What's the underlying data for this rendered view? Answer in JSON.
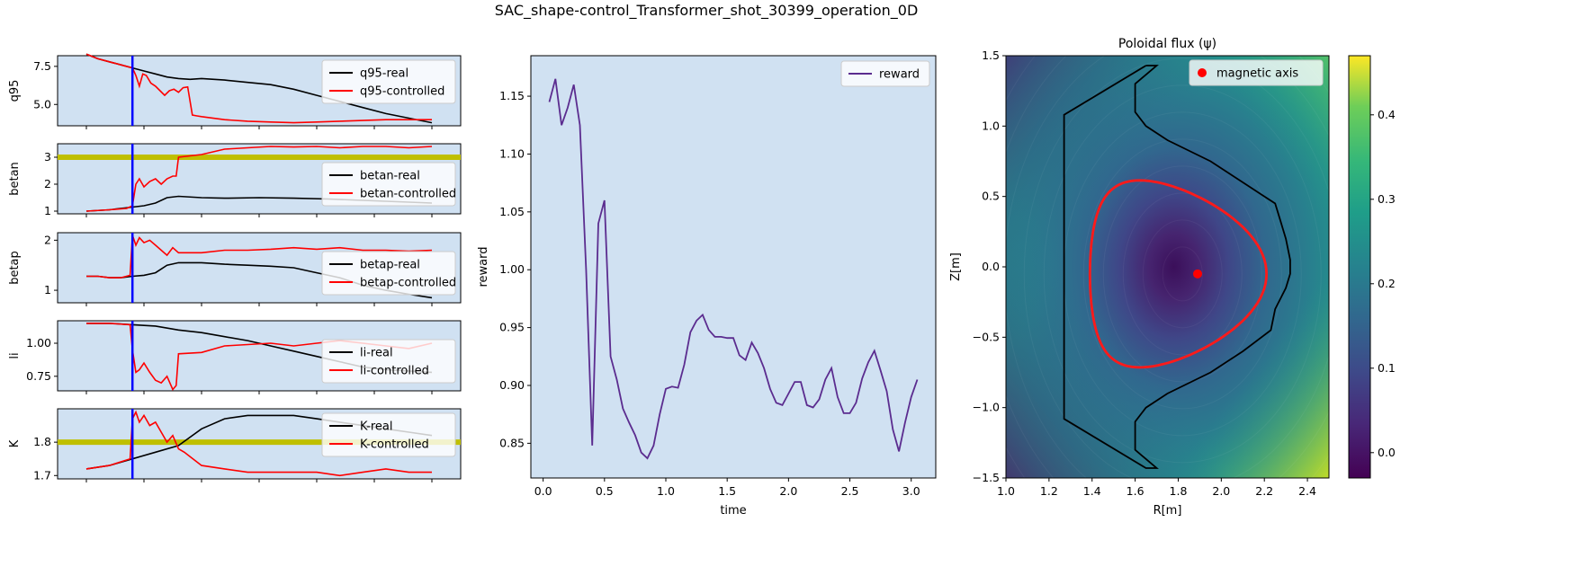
{
  "figure": {
    "title": "SAC_shape-control_Transformer_shot_30399_operation_0D"
  },
  "colors": {
    "panel_bg": "#d0e1f2",
    "real": "#000000",
    "controlled": "#ff0000",
    "marker": "#0000ff",
    "target": "#bfbf00",
    "reward": "#5b2c8f",
    "contour": "#ff1a1a"
  },
  "chart_data": [
    {
      "type": "line",
      "name": "q95",
      "ylabel": "q95",
      "ylim": [
        3.6,
        8.2
      ],
      "yticks": [
        5.0,
        7.5
      ],
      "ytick_labels": [
        "5.0",
        "7.5"
      ],
      "xlim": [
        -0.25,
        3.25
      ],
      "marker_x": 0.4,
      "target": null,
      "series": [
        {
          "name": "q95-real",
          "x": [
            0,
            0.1,
            0.2,
            0.3,
            0.4,
            0.5,
            0.6,
            0.7,
            0.8,
            0.9,
            1.0,
            1.2,
            1.4,
            1.6,
            1.8,
            2.0,
            2.2,
            2.4,
            2.6,
            2.8,
            3.0
          ],
          "y": [
            8.3,
            8.0,
            7.8,
            7.6,
            7.4,
            7.2,
            7.0,
            6.8,
            6.7,
            6.65,
            6.7,
            6.6,
            6.45,
            6.3,
            6.0,
            5.6,
            5.2,
            4.8,
            4.4,
            4.1,
            3.8
          ]
        },
        {
          "name": "q95-controlled",
          "x": [
            0,
            0.1,
            0.2,
            0.3,
            0.4,
            0.43,
            0.46,
            0.49,
            0.52,
            0.56,
            0.6,
            0.64,
            0.68,
            0.72,
            0.76,
            0.8,
            0.84,
            0.88,
            0.92,
            0.96,
            1.0,
            1.2,
            1.4,
            1.6,
            1.8,
            2.0,
            2.2,
            2.4,
            2.6,
            2.8,
            3.0
          ],
          "y": [
            8.3,
            8.0,
            7.8,
            7.6,
            7.4,
            6.9,
            6.2,
            7.0,
            6.9,
            6.4,
            6.2,
            5.9,
            5.6,
            5.9,
            6.0,
            5.8,
            6.1,
            6.15,
            4.3,
            4.25,
            4.2,
            4.0,
            3.9,
            3.85,
            3.8,
            3.85,
            3.9,
            3.95,
            4.0,
            4.0,
            4.0
          ]
        }
      ],
      "legend_position": "top-right"
    },
    {
      "type": "line",
      "name": "betan",
      "ylabel": "betan",
      "ylim": [
        0.9,
        3.5
      ],
      "yticks": [
        1,
        2,
        3
      ],
      "ytick_labels": [
        "1",
        "2",
        "3"
      ],
      "xlim": [
        -0.25,
        3.25
      ],
      "marker_x": 0.4,
      "target": 3.0,
      "series": [
        {
          "name": "betan-real",
          "x": [
            0,
            0.2,
            0.4,
            0.5,
            0.6,
            0.7,
            0.8,
            1.0,
            1.2,
            1.5,
            1.8,
            2.1,
            2.4,
            2.7,
            3.0
          ],
          "y": [
            1.0,
            1.05,
            1.15,
            1.2,
            1.3,
            1.5,
            1.55,
            1.5,
            1.48,
            1.5,
            1.48,
            1.45,
            1.4,
            1.35,
            1.3
          ]
        },
        {
          "name": "betan-controlled",
          "x": [
            0,
            0.2,
            0.35,
            0.4,
            0.43,
            0.46,
            0.5,
            0.55,
            0.6,
            0.65,
            0.7,
            0.75,
            0.78,
            0.8,
            1.0,
            1.2,
            1.4,
            1.6,
            1.8,
            2.0,
            2.2,
            2.4,
            2.6,
            2.8,
            3.0
          ],
          "y": [
            1.0,
            1.05,
            1.1,
            1.2,
            2.0,
            2.2,
            1.9,
            2.1,
            2.2,
            2.0,
            2.2,
            2.3,
            2.3,
            3.0,
            3.1,
            3.3,
            3.35,
            3.4,
            3.38,
            3.4,
            3.35,
            3.4,
            3.4,
            3.35,
            3.4
          ]
        }
      ],
      "legend_position": "center-right"
    },
    {
      "type": "line",
      "name": "betap",
      "ylabel": "betap",
      "ylim": [
        0.75,
        2.15
      ],
      "yticks": [
        1,
        2
      ],
      "ytick_labels": [
        "1",
        "2"
      ],
      "xlim": [
        -0.25,
        3.25
      ],
      "marker_x": 0.4,
      "target": null,
      "series": [
        {
          "name": "betap-real",
          "x": [
            0,
            0.1,
            0.2,
            0.3,
            0.4,
            0.5,
            0.6,
            0.7,
            0.8,
            0.9,
            1.0,
            1.2,
            1.4,
            1.6,
            1.8,
            2.0,
            2.2,
            2.4,
            2.6,
            2.8,
            3.0
          ],
          "y": [
            1.28,
            1.28,
            1.25,
            1.25,
            1.28,
            1.3,
            1.35,
            1.5,
            1.55,
            1.55,
            1.55,
            1.52,
            1.5,
            1.48,
            1.45,
            1.35,
            1.25,
            1.1,
            1.0,
            0.92,
            0.85
          ]
        },
        {
          "name": "betap-controlled",
          "x": [
            0,
            0.1,
            0.2,
            0.3,
            0.38,
            0.4,
            0.43,
            0.46,
            0.5,
            0.55,
            0.6,
            0.65,
            0.7,
            0.75,
            0.8,
            1.0,
            1.2,
            1.4,
            1.6,
            1.8,
            2.0,
            2.2,
            2.4,
            2.6,
            2.8,
            3.0
          ],
          "y": [
            1.28,
            1.28,
            1.25,
            1.25,
            1.3,
            2.1,
            1.9,
            2.05,
            1.95,
            2.0,
            1.9,
            1.8,
            1.7,
            1.85,
            1.75,
            1.75,
            1.8,
            1.8,
            1.82,
            1.85,
            1.82,
            1.85,
            1.8,
            1.8,
            1.78,
            1.8
          ]
        }
      ],
      "legend_position": "center-right"
    },
    {
      "type": "line",
      "name": "li",
      "ylabel": "li",
      "ylim": [
        0.64,
        1.17
      ],
      "yticks": [
        0.75,
        1.0
      ],
      "ytick_labels": [
        "0.75",
        "1.00"
      ],
      "xlim": [
        -0.25,
        3.25
      ],
      "marker_x": 0.4,
      "target": null,
      "series": [
        {
          "name": "li-real",
          "x": [
            0,
            0.2,
            0.4,
            0.6,
            0.8,
            1.0,
            1.2,
            1.4,
            1.6,
            1.8,
            2.0,
            2.2,
            2.4,
            2.6,
            2.8,
            3.0
          ],
          "y": [
            1.15,
            1.15,
            1.14,
            1.13,
            1.1,
            1.08,
            1.05,
            1.02,
            0.98,
            0.94,
            0.9,
            0.86,
            0.82,
            0.8,
            0.79,
            0.78
          ]
        },
        {
          "name": "li-controlled",
          "x": [
            0,
            0.2,
            0.38,
            0.4,
            0.43,
            0.46,
            0.5,
            0.55,
            0.6,
            0.65,
            0.7,
            0.75,
            0.78,
            0.8,
            1.0,
            1.2,
            1.4,
            1.6,
            1.8,
            2.0,
            2.2,
            2.4,
            2.6,
            2.8,
            3.0
          ],
          "y": [
            1.15,
            1.15,
            1.14,
            0.95,
            0.78,
            0.8,
            0.85,
            0.78,
            0.72,
            0.7,
            0.75,
            0.65,
            0.68,
            0.92,
            0.93,
            0.98,
            0.99,
            1.0,
            0.98,
            1.0,
            1.02,
            1.0,
            0.98,
            0.96,
            1.0
          ]
        }
      ],
      "legend_position": "center-right"
    },
    {
      "type": "line",
      "name": "K",
      "ylabel": "K",
      "ylim": [
        1.69,
        1.9
      ],
      "yticks": [
        1.7,
        1.8
      ],
      "ytick_labels": [
        "1.7",
        "1.8"
      ],
      "xlim": [
        -0.25,
        3.25
      ],
      "marker_x": 0.4,
      "target": 1.8,
      "series": [
        {
          "name": "K-real",
          "x": [
            0,
            0.2,
            0.4,
            0.6,
            0.8,
            1.0,
            1.2,
            1.4,
            1.6,
            1.8,
            2.0,
            2.2,
            2.4,
            2.6,
            2.8,
            3.0
          ],
          "y": [
            1.72,
            1.73,
            1.75,
            1.77,
            1.79,
            1.84,
            1.87,
            1.88,
            1.88,
            1.88,
            1.87,
            1.86,
            1.85,
            1.84,
            1.83,
            1.82
          ]
        },
        {
          "name": "K-controlled",
          "x": [
            0,
            0.2,
            0.38,
            0.4,
            0.43,
            0.46,
            0.5,
            0.55,
            0.6,
            0.65,
            0.7,
            0.75,
            0.8,
            0.85,
            1.0,
            1.2,
            1.4,
            1.6,
            1.8,
            2.0,
            2.2,
            2.4,
            2.6,
            2.8,
            3.0
          ],
          "y": [
            1.72,
            1.73,
            1.75,
            1.87,
            1.89,
            1.86,
            1.88,
            1.85,
            1.86,
            1.83,
            1.8,
            1.82,
            1.78,
            1.77,
            1.73,
            1.72,
            1.71,
            1.71,
            1.71,
            1.71,
            1.7,
            1.71,
            1.72,
            1.71,
            1.71
          ]
        }
      ],
      "legend_position": "top-right"
    },
    {
      "type": "line",
      "name": "reward",
      "xlabel": "time",
      "ylabel": "reward",
      "xlim": [
        -0.1,
        3.2
      ],
      "ylim": [
        0.82,
        1.185
      ],
      "xticks": [
        0.0,
        0.5,
        1.0,
        1.5,
        2.0,
        2.5,
        3.0
      ],
      "xtick_labels": [
        "0.0",
        "0.5",
        "1.0",
        "1.5",
        "2.0",
        "2.5",
        "3.0"
      ],
      "yticks": [
        0.85,
        0.9,
        0.95,
        1.0,
        1.05,
        1.1,
        1.15
      ],
      "ytick_labels": [
        "0.85",
        "0.90",
        "0.95",
        "1.00",
        "1.05",
        "1.10",
        "1.15"
      ],
      "series": [
        {
          "name": "reward",
          "x": [
            0.05,
            0.1,
            0.15,
            0.2,
            0.25,
            0.3,
            0.35,
            0.4,
            0.45,
            0.5,
            0.55,
            0.6,
            0.65,
            0.7,
            0.75,
            0.8,
            0.85,
            0.9,
            0.95,
            1.0,
            1.05,
            1.1,
            1.15,
            1.2,
            1.25,
            1.3,
            1.35,
            1.4,
            1.45,
            1.5,
            1.55,
            1.6,
            1.65,
            1.7,
            1.75,
            1.8,
            1.85,
            1.9,
            1.95,
            2.0,
            2.05,
            2.1,
            2.15,
            2.2,
            2.25,
            2.3,
            2.35,
            2.4,
            2.45,
            2.5,
            2.55,
            2.6,
            2.65,
            2.7,
            2.75,
            2.8,
            2.85,
            2.9,
            2.95,
            3.0,
            3.05
          ],
          "y": [
            1.145,
            1.165,
            1.125,
            1.14,
            1.16,
            1.125,
            1.0,
            0.848,
            1.04,
            1.06,
            0.925,
            0.905,
            0.88,
            0.868,
            0.857,
            0.842,
            0.837,
            0.848,
            0.875,
            0.897,
            0.899,
            0.898,
            0.918,
            0.946,
            0.956,
            0.961,
            0.948,
            0.942,
            0.942,
            0.941,
            0.941,
            0.926,
            0.922,
            0.937,
            0.928,
            0.915,
            0.897,
            0.885,
            0.883,
            0.893,
            0.903,
            0.903,
            0.883,
            0.881,
            0.888,
            0.905,
            0.915,
            0.89,
            0.876,
            0.876,
            0.885,
            0.906,
            0.92,
            0.93,
            0.913,
            0.895,
            0.862,
            0.843,
            0.868,
            0.89,
            0.905
          ]
        }
      ],
      "legend": [
        "reward"
      ],
      "legend_position": "top-right"
    },
    {
      "type": "heatmap",
      "title": "Poloidal flux (ψ)",
      "xlabel": "R[m]",
      "ylabel": "Z[m]",
      "xlim": [
        1.0,
        2.5
      ],
      "ylim": [
        -1.5,
        1.5
      ],
      "xticks": [
        1.0,
        1.2,
        1.4,
        1.6,
        1.8,
        2.0,
        2.2,
        2.4
      ],
      "xtick_labels": [
        "1.0",
        "1.2",
        "1.4",
        "1.6",
        "1.8",
        "2.0",
        "2.2",
        "2.4"
      ],
      "yticks": [
        -1.5,
        -1.0,
        -0.5,
        0.0,
        0.5,
        1.0,
        1.5
      ],
      "ytick_labels": [
        "−1.5",
        "−1.0",
        "−0.5",
        "0.0",
        "0.5",
        "1.0",
        "1.5"
      ],
      "colorbar": {
        "range": [
          -0.03,
          0.47
        ],
        "ticks": [
          0.0,
          0.1,
          0.2,
          0.3,
          0.4
        ],
        "tick_labels": [
          "0.0",
          "0.1",
          "0.2",
          "0.3",
          "0.4"
        ],
        "colormap": "viridis"
      },
      "magnetic_axis": {
        "R": 1.89,
        "Z": -0.05
      },
      "legend": [
        "magnetic axis"
      ],
      "legend_position": "top-right",
      "wall": {
        "R": [
          1.65,
          1.7,
          1.6,
          1.6,
          1.65,
          1.75,
          1.95,
          2.1,
          2.25,
          2.27,
          2.3,
          2.32,
          2.32,
          2.3,
          2.25,
          2.23,
          2.1,
          1.95,
          1.75,
          1.65,
          1.6,
          1.6,
          1.7,
          1.65,
          1.27,
          1.27,
          1.65
        ],
        "Z": [
          1.43,
          1.43,
          1.3,
          1.1,
          1.0,
          0.9,
          0.75,
          0.6,
          0.45,
          0.35,
          0.2,
          0.05,
          -0.05,
          -0.15,
          -0.3,
          -0.45,
          -0.6,
          -0.75,
          -0.9,
          -1.0,
          -1.1,
          -1.3,
          -1.43,
          -1.43,
          -1.08,
          1.08,
          1.43
        ]
      },
      "boundary": {
        "center_R": 1.8,
        "center_Z": -0.05,
        "a": 0.41,
        "kappa": 1.62,
        "delta": 0.45
      }
    }
  ]
}
